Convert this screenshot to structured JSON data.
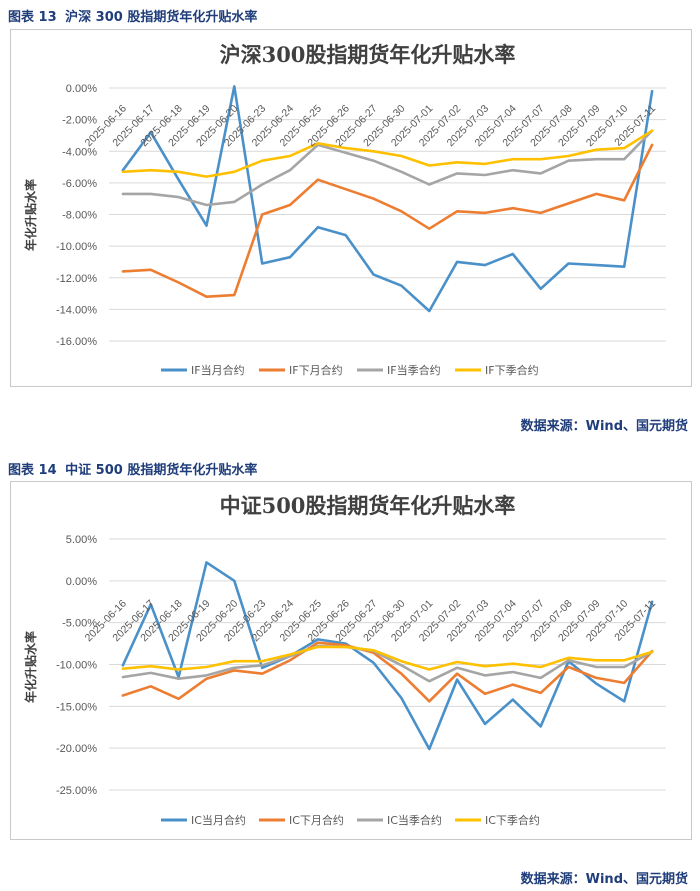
{
  "figures": [
    {
      "caption_no": "图表 13",
      "caption_text": "沪深 300 股指期货年化升贴水率",
      "source": "数据来源：Wind、国元期货"
    },
    {
      "caption_no": "图表 14",
      "caption_text": "中证 500 股指期货年化升贴水率",
      "source": "数据来源：Wind、国元期货"
    }
  ],
  "chart_data": [
    {
      "type": "line",
      "title": "沪深300股指期货年化升贴水率",
      "ylabel": "年化升贴水率",
      "xlabel": "",
      "ylim": [
        -16,
        0
      ],
      "yticks": [
        0,
        -2,
        -4,
        -6,
        -8,
        -10,
        -12,
        -14,
        -16
      ],
      "ytick_labels": [
        "0.00%",
        "-2.00%",
        "-4.00%",
        "-6.00%",
        "-8.00%",
        "-10.00%",
        "-12.00%",
        "-14.00%",
        "-16.00%"
      ],
      "grid": true,
      "legend_position": "bottom",
      "categories": [
        "2025-06-16",
        "2025-06-17",
        "2025-06-18",
        "2025-06-19",
        "2025-06-20",
        "2025-06-23",
        "2025-06-24",
        "2025-06-25",
        "2025-06-26",
        "2025-06-27",
        "2025-06-30",
        "2025-07-01",
        "2025-07-02",
        "2025-07-03",
        "2025-07-04",
        "2025-07-07",
        "2025-07-08",
        "2025-07-09",
        "2025-07-10",
        "2025-07-11"
      ],
      "series": [
        {
          "name": "IF当月合约",
          "color": "#4a90c9",
          "values": [
            -5.2,
            -2.8,
            -5.8,
            -8.7,
            0.1,
            -11.1,
            -10.7,
            -8.8,
            -9.3,
            -11.8,
            -12.5,
            -14.1,
            -11.0,
            -11.2,
            -10.5,
            -12.7,
            -11.1,
            -11.2,
            -11.3,
            -0.2
          ]
        },
        {
          "name": "IF下月合约",
          "color": "#ed7d31",
          "values": [
            -11.6,
            -11.5,
            -12.3,
            -13.2,
            -13.1,
            -8.0,
            -7.4,
            -5.8,
            -6.4,
            -7.0,
            -7.8,
            -8.9,
            -7.8,
            -7.9,
            -7.6,
            -7.9,
            -7.3,
            -6.7,
            -7.1,
            -3.6
          ]
        },
        {
          "name": "IF当季合约",
          "color": "#a5a5a5",
          "values": [
            -6.7,
            -6.7,
            -6.9,
            -7.4,
            -7.2,
            -6.1,
            -5.2,
            -3.6,
            -4.1,
            -4.6,
            -5.3,
            -6.1,
            -5.4,
            -5.5,
            -5.2,
            -5.4,
            -4.6,
            -4.5,
            -4.5,
            -2.7
          ]
        },
        {
          "name": "IF下季合约",
          "color": "#ffc000",
          "values": [
            -5.3,
            -5.2,
            -5.3,
            -5.6,
            -5.3,
            -4.6,
            -4.3,
            -3.5,
            -3.8,
            -4.0,
            -4.3,
            -4.9,
            -4.7,
            -4.8,
            -4.5,
            -4.5,
            -4.3,
            -3.9,
            -3.8,
            -2.7
          ]
        }
      ]
    },
    {
      "type": "line",
      "title": "中证500股指期货年化升贴水率",
      "ylabel": "年化升贴水率",
      "xlabel": "",
      "ylim": [
        -25,
        5
      ],
      "yticks": [
        5,
        0,
        -5,
        -10,
        -15,
        -20,
        -25
      ],
      "ytick_labels": [
        "5.00%",
        "0.00%",
        "-5.00%",
        "-10.00%",
        "-15.00%",
        "-20.00%",
        "-25.00%"
      ],
      "grid": true,
      "legend_position": "bottom",
      "categories": [
        "2025-06-16",
        "2025-06-17",
        "2025-06-18",
        "2025-06-19",
        "2025-06-20",
        "2025-06-23",
        "2025-06-24",
        "2025-06-25",
        "2025-06-26",
        "2025-06-27",
        "2025-06-30",
        "2025-07-01",
        "2025-07-02",
        "2025-07-03",
        "2025-07-04",
        "2025-07-07",
        "2025-07-08",
        "2025-07-09",
        "2025-07-10",
        "2025-07-11"
      ],
      "series": [
        {
          "name": "IC当月合约",
          "color": "#4a90c9",
          "values": [
            -10.1,
            -2.8,
            -11.5,
            2.2,
            0.0,
            -10.4,
            -9.0,
            -7.0,
            -7.5,
            -9.8,
            -14.0,
            -20.1,
            -11.8,
            -17.1,
            -14.2,
            -17.4,
            -9.6,
            -12.3,
            -14.4,
            -2.5
          ]
        },
        {
          "name": "IC下月合约",
          "color": "#ed7d31",
          "values": [
            -13.7,
            -12.6,
            -14.1,
            -11.7,
            -10.7,
            -11.1,
            -9.5,
            -7.4,
            -7.7,
            -8.6,
            -11.1,
            -14.4,
            -11.1,
            -13.5,
            -12.4,
            -13.4,
            -10.3,
            -11.6,
            -12.2,
            -8.4
          ]
        },
        {
          "name": "IC当季合约",
          "color": "#a5a5a5",
          "values": [
            -11.5,
            -11.0,
            -11.7,
            -11.3,
            -10.4,
            -10.1,
            -9.0,
            -7.8,
            -7.9,
            -8.4,
            -10.1,
            -12.0,
            -10.4,
            -11.3,
            -10.9,
            -11.6,
            -9.5,
            -10.3,
            -10.3,
            -8.5
          ]
        },
        {
          "name": "IC下季合约",
          "color": "#ffc000",
          "values": [
            -10.5,
            -10.2,
            -10.6,
            -10.3,
            -9.6,
            -9.6,
            -8.8,
            -7.9,
            -7.9,
            -8.3,
            -9.6,
            -10.6,
            -9.7,
            -10.2,
            -9.9,
            -10.3,
            -9.2,
            -9.5,
            -9.5,
            -8.5
          ]
        }
      ]
    }
  ]
}
